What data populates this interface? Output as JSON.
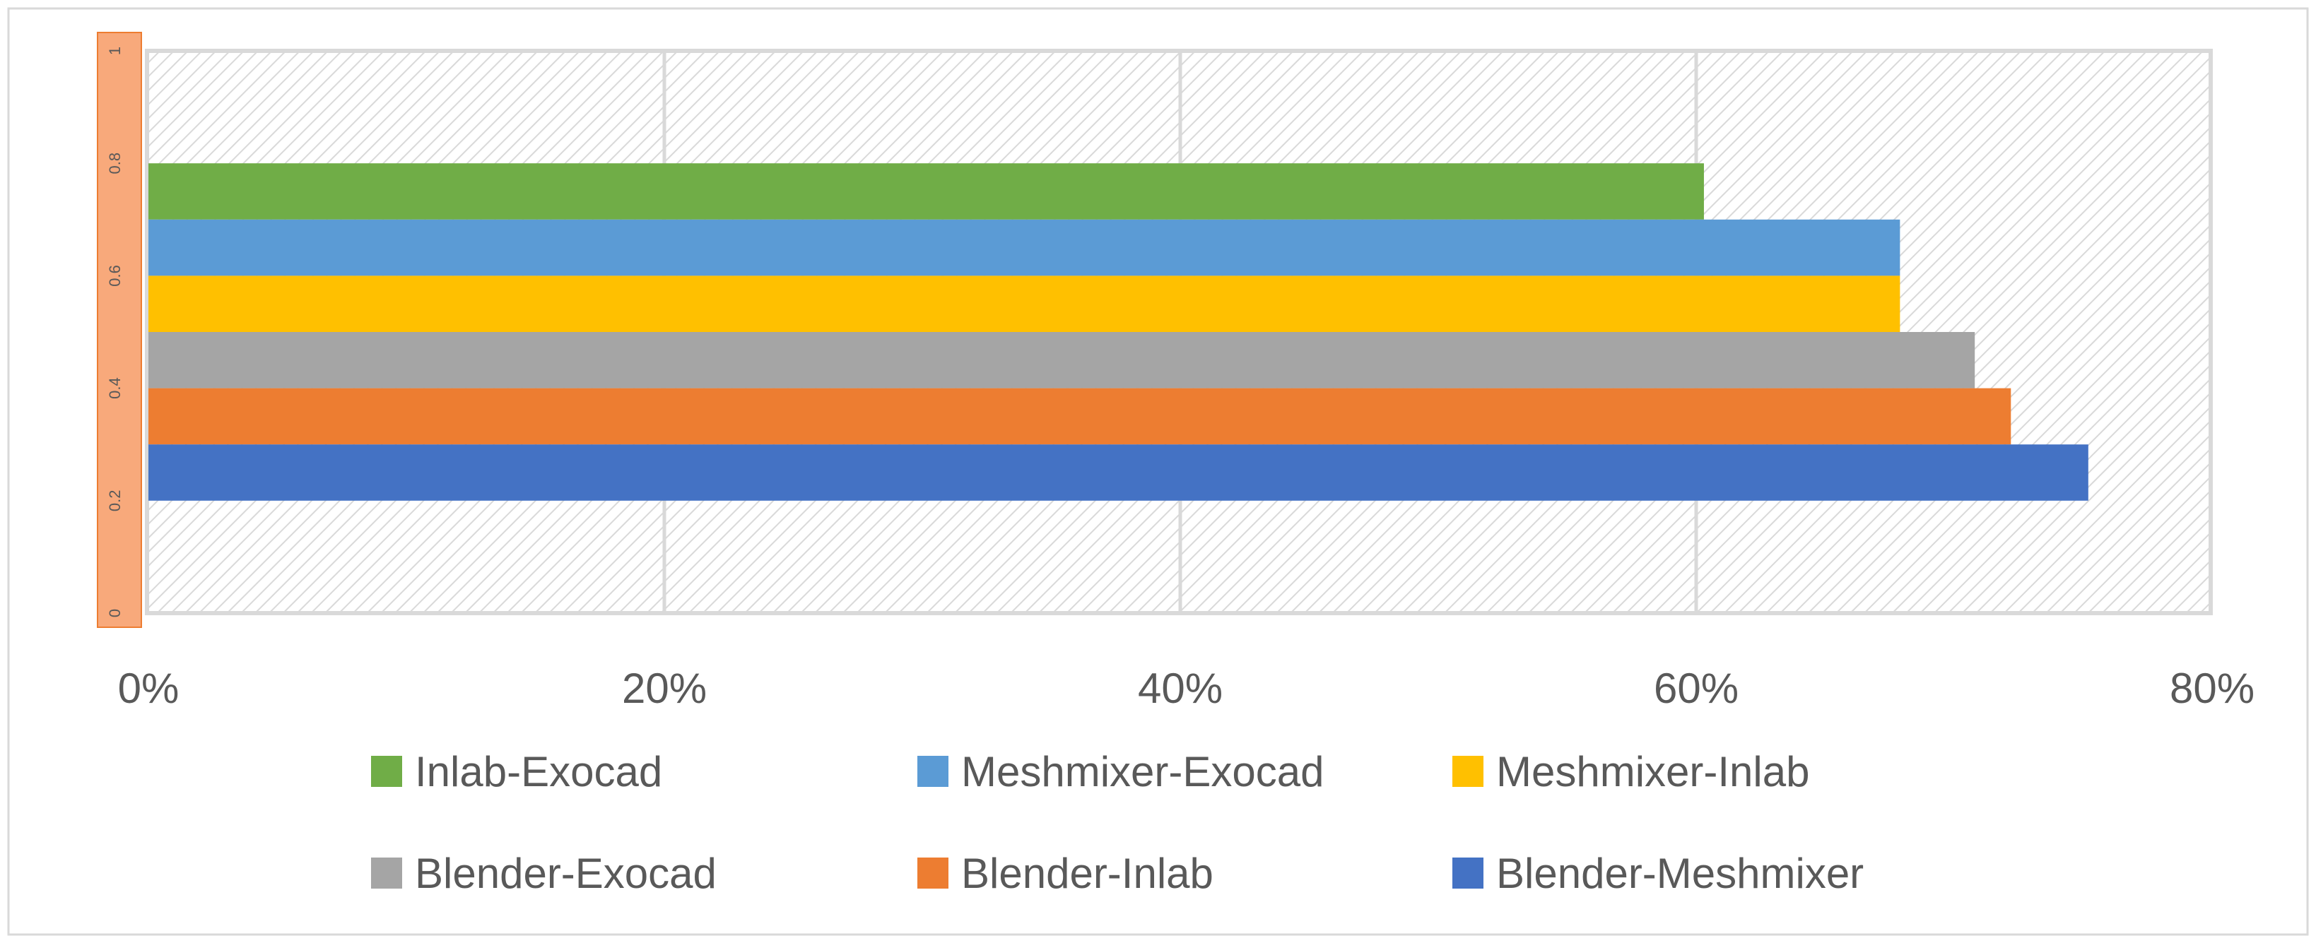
{
  "chart_data": {
    "type": "bar",
    "orientation": "horizontal",
    "title": "",
    "xlabel": "",
    "ylabel": "",
    "xlim": [
      0,
      0.8
    ],
    "ylim": [
      0,
      1
    ],
    "x_ticks": [
      "0%",
      "20%",
      "40%",
      "60%",
      "80%"
    ],
    "x_tick_values": [
      0,
      0.2,
      0.4,
      0.6,
      0.8
    ],
    "y_ticks": [
      "0",
      "0.2",
      "0.4",
      "0.6",
      "0.8",
      "1"
    ],
    "y_tick_values": [
      0,
      0.2,
      0.4,
      0.6,
      0.8,
      1
    ],
    "grid": true,
    "legend_position": "bottom",
    "series": [
      {
        "name": "Inlab-Exocad",
        "value": 0.603,
        "color": "#70AD47"
      },
      {
        "name": "Meshmixer-Exocad",
        "value": 0.679,
        "color": "#5B9BD5"
      },
      {
        "name": "Meshmixer-Inlab",
        "value": 0.679,
        "color": "#FFC000"
      },
      {
        "name": "Blender-Exocad",
        "value": 0.708,
        "color": "#A5A5A5"
      },
      {
        "name": "Blender-Inlab",
        "value": 0.722,
        "color": "#ED7D31"
      },
      {
        "name": "Blender-Meshmixer",
        "value": 0.752,
        "color": "#4472C4"
      }
    ]
  }
}
